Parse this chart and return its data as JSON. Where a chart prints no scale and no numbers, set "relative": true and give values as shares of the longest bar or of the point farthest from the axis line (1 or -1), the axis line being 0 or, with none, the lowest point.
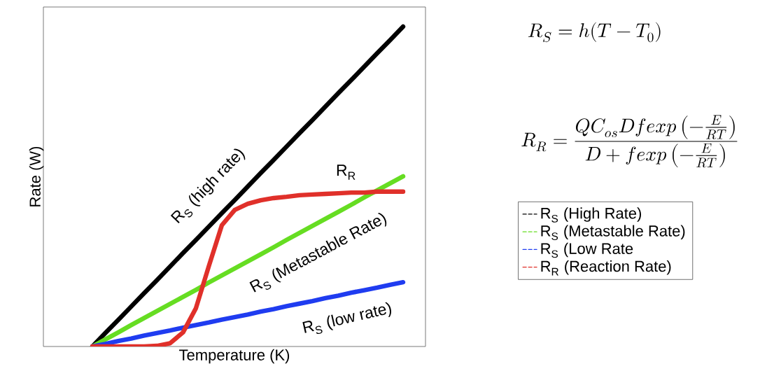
{
  "chart_data": {
    "type": "line",
    "relative": true,
    "xlabel": "Temperature (K)",
    "ylabel": "Rate (W)",
    "legend": "right",
    "categories": [
      null,
      null,
      null,
      null,
      null,
      null,
      null,
      null,
      null,
      null,
      null,
      null,
      null,
      null,
      null,
      null,
      null,
      null,
      null,
      null,
      null,
      null,
      null,
      null,
      null
    ],
    "series": [
      {
        "name": "R$_{S}$ (High Rate)",
        "color": "#000000",
        "values": [
          0,
          0.042,
          0.083,
          0.125,
          0.167,
          0.208,
          0.25,
          0.292,
          0.333,
          0.375,
          0.417,
          0.458,
          0.5,
          0.542,
          0.583,
          0.625,
          0.667,
          0.708,
          0.75,
          0.792,
          0.833,
          0.875,
          0.917,
          0.958,
          1
        ]
      },
      {
        "name": "R$_{S}$ (Metastable Rate)",
        "color": "#66dd22",
        "values": [
          0,
          0.022,
          0.044,
          0.067,
          0.089,
          0.111,
          0.133,
          0.155,
          0.177,
          0.2,
          0.222,
          0.244,
          0.266,
          0.288,
          0.31,
          0.333,
          0.355,
          0.377,
          0.399,
          0.421,
          0.443,
          0.466,
          0.488,
          0.51,
          0.532
        ]
      },
      {
        "name": "R$_{S}$ (Low Rate",
        "color": "#1f3cf0",
        "values": [
          0,
          0.008,
          0.017,
          0.025,
          0.034,
          0.042,
          0.05,
          0.059,
          0.067,
          0.075,
          0.084,
          0.092,
          0.1,
          0.109,
          0.117,
          0.126,
          0.134,
          0.142,
          0.151,
          0.159,
          0.168,
          0.176,
          0.184,
          0.193,
          0.201
        ]
      },
      {
        "name": "R$_{R}$ (Reaction Rate)",
        "color": "#e0302a",
        "values": [
          0,
          0,
          0,
          0,
          0,
          0.002,
          0.01,
          0.044,
          0.12,
          0.252,
          0.379,
          0.427,
          0.446,
          0.457,
          0.464,
          0.468,
          0.473,
          0.475,
          0.477,
          0.479,
          0.481,
          0.481,
          0.484,
          0.484,
          0.484
        ]
      }
    ],
    "annotations": [
      "R$_{S}$ (high rate)",
      "R$_{R}$",
      "R$_{S}$ (Metastable Rate)",
      "R$_{S}$ (low rate)",
      "R_S = h(T - T_0)",
      "R_R = \\frac{QC_{os}Df exp\\left(-\\frac{E}{RT}\\right)}{D + f exp\\left(-\\frac{E}{RT}\\right)}"
    ]
  }
}
